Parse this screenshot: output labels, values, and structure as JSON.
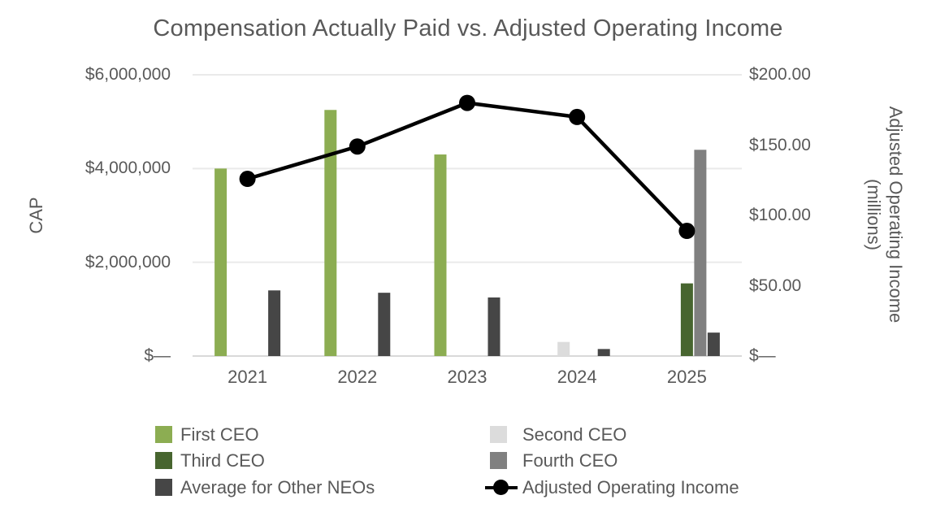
{
  "chart_data": {
    "type": "bar",
    "combo": "bars + line, dual y-axis",
    "title": "Compensation Actually Paid vs. Adjusted Operating Income",
    "categories": [
      "2021",
      "2022",
      "2023",
      "2024",
      "2025"
    ],
    "bar_series": [
      {
        "name": "First CEO",
        "color": "#8CAD52",
        "values": [
          4000000,
          5250000,
          4300000,
          null,
          null
        ]
      },
      {
        "name": "Second CEO",
        "color": "#DCDCDC",
        "values": [
          null,
          null,
          null,
          300000,
          null
        ]
      },
      {
        "name": "Third CEO",
        "color": "#47652F",
        "values": [
          null,
          null,
          null,
          null,
          1550000
        ]
      },
      {
        "name": "Fourth CEO",
        "color": "#808080",
        "values": [
          null,
          null,
          null,
          null,
          4400000
        ]
      },
      {
        "name": "Average for Other NEOs",
        "color": "#464646",
        "values": [
          1400000,
          1350000,
          1250000,
          150000,
          500000
        ]
      }
    ],
    "line_series": {
      "name": "Adjusted Operating Income",
      "color": "#000000",
      "axis": "right",
      "values": [
        126,
        149,
        180,
        170,
        89
      ]
    },
    "left_axis": {
      "label": "CAP",
      "max": 6000000,
      "ticks": [
        {
          "v": 0,
          "label": "$—"
        },
        {
          "v": 2000000,
          "label": "$2,000,000"
        },
        {
          "v": 4000000,
          "label": "$4,000,000"
        },
        {
          "v": 6000000,
          "label": "$6,000,000"
        }
      ]
    },
    "right_axis": {
      "label_line1": "Adjusted Operating Income",
      "label_line2": "(millions)",
      "max": 200,
      "ticks": [
        {
          "v": 0,
          "label": "$—"
        },
        {
          "v": 50,
          "label": "$50.00"
        },
        {
          "v": 100,
          "label": "$100.00"
        },
        {
          "v": 150,
          "label": "$150.00"
        },
        {
          "v": 200,
          "label": "$200.00"
        }
      ]
    },
    "grid": "horizontal gridlines at left-axis ticks",
    "legend_position": "bottom, two columns"
  },
  "legend": {
    "columns": [
      {
        "items": [
          {
            "label": "First CEO",
            "swatch": "#8CAD52",
            "marker": "square"
          },
          {
            "label": "Third CEO",
            "swatch": "#47652F",
            "marker": "square"
          },
          {
            "label": "Average for Other NEOs",
            "swatch": "#464646",
            "marker": "square"
          }
        ]
      },
      {
        "items": [
          {
            "label": "Second CEO",
            "swatch": "#DCDCDC",
            "marker": "square"
          },
          {
            "label": "Fourth CEO",
            "swatch": "#808080",
            "marker": "square"
          },
          {
            "label": "Adjusted Operating Income",
            "swatch": "#000000",
            "marker": "line-dot"
          }
        ]
      }
    ]
  },
  "colors": {
    "text": "#595959",
    "gridline": "#EAEAEA",
    "baseline": "#D9D9D9",
    "background": "#FFFFFF"
  }
}
